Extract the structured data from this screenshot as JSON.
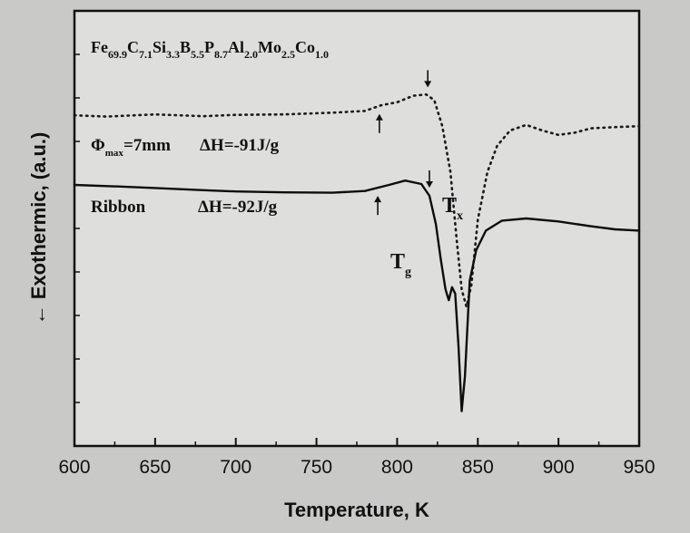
{
  "chart_data": {
    "type": "line",
    "title": "",
    "xlabel": "Temperature, K",
    "ylabel": "← Exothermic, (a.u.)",
    "xlim": [
      600,
      950
    ],
    "ylim": [
      0,
      100
    ],
    "x_ticks": [
      "600",
      "650",
      "700",
      "750",
      "800",
      "850",
      "900",
      "950"
    ],
    "y_ticks_labeled": false,
    "grid": false,
    "composition": {
      "parts": [
        {
          "el": "Fe",
          "sub": "69.9"
        },
        {
          "el": "C",
          "sub": "7.1"
        },
        {
          "el": "Si",
          "sub": "3.3"
        },
        {
          "el": "B",
          "sub": "5.5"
        },
        {
          "el": "P",
          "sub": "8.7"
        },
        {
          "el": "Al",
          "sub": "2.0"
        },
        {
          "el": "Mo",
          "sub": "2.5"
        },
        {
          "el": "Co",
          "sub": "1.0"
        }
      ]
    },
    "series": [
      {
        "name": "Φmax=7mm",
        "label_main": "Φ",
        "label_sub": "max",
        "label_rest": "=7mm",
        "enthalpy": "ΔH=-91J/g",
        "style": "dotted",
        "color": "#1a1a1a",
        "points": [
          [
            600,
            76
          ],
          [
            620,
            75.7
          ],
          [
            650,
            76.2
          ],
          [
            680,
            75.8
          ],
          [
            700,
            76.1
          ],
          [
            730,
            76.2
          ],
          [
            760,
            76.6
          ],
          [
            780,
            77.0
          ],
          [
            790,
            78.3
          ],
          [
            800,
            79.0
          ],
          [
            810,
            80.5
          ],
          [
            818,
            80.8
          ],
          [
            823,
            79.5
          ],
          [
            828,
            73.5
          ],
          [
            833,
            63
          ],
          [
            837,
            47
          ],
          [
            840,
            36
          ],
          [
            843,
            32
          ],
          [
            846,
            37
          ],
          [
            850,
            52
          ],
          [
            856,
            63
          ],
          [
            862,
            69
          ],
          [
            870,
            72.5
          ],
          [
            880,
            73.8
          ],
          [
            890,
            72.5
          ],
          [
            900,
            71.5
          ],
          [
            910,
            72.0
          ],
          [
            920,
            73.0
          ],
          [
            935,
            73.3
          ],
          [
            950,
            73.5
          ]
        ]
      },
      {
        "name": "Ribbon",
        "label_main": "Ribbon",
        "enthalpy": "ΔH=-92J/g",
        "style": "solid",
        "color": "#0d0d0d",
        "points": [
          [
            600,
            60
          ],
          [
            630,
            59.6
          ],
          [
            650,
            59.3
          ],
          [
            680,
            58.8
          ],
          [
            700,
            58.5
          ],
          [
            730,
            58.3
          ],
          [
            760,
            58.2
          ],
          [
            780,
            58.6
          ],
          [
            795,
            60.0
          ],
          [
            805,
            61.0
          ],
          [
            815,
            60.2
          ],
          [
            820,
            57.5
          ],
          [
            824,
            51
          ],
          [
            827,
            43
          ],
          [
            830,
            36
          ],
          [
            832,
            33.5
          ],
          [
            834,
            36.5
          ],
          [
            836,
            35.0
          ],
          [
            838,
            23
          ],
          [
            840,
            8
          ],
          [
            842,
            16
          ],
          [
            845,
            38
          ],
          [
            849,
            45
          ],
          [
            855,
            49.5
          ],
          [
            865,
            51.8
          ],
          [
            880,
            52.3
          ],
          [
            900,
            51.6
          ],
          [
            920,
            50.5
          ],
          [
            935,
            49.8
          ],
          [
            950,
            49.5
          ]
        ]
      }
    ],
    "annotations": [
      {
        "text": "T",
        "sub": "x",
        "name": "tx-label"
      },
      {
        "text": "T",
        "sub": "g",
        "name": "tg-label"
      }
    ]
  }
}
